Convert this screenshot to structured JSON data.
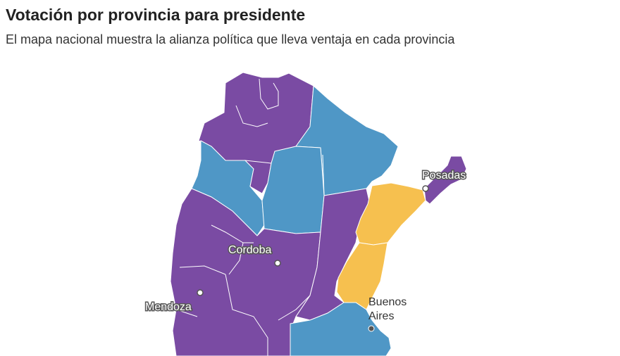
{
  "header": {
    "title": "Votación por provincia para presidente",
    "subtitle": "El mapa nacional muestra la alianza política que lleva ventaja en cada provincia"
  },
  "colors": {
    "alliance_purple": "#7a4ba3",
    "alliance_blue": "#4f97c6",
    "alliance_yellow": "#f6c04f",
    "border": "#ffffff"
  },
  "map": {
    "regions": [
      {
        "id": "north-west",
        "alliance": "purple"
      },
      {
        "id": "north-east",
        "alliance": "blue"
      },
      {
        "id": "catamarca",
        "alliance": "blue"
      },
      {
        "id": "santiago",
        "alliance": "blue"
      },
      {
        "id": "tucuman",
        "alliance": "purple"
      },
      {
        "id": "cuyo-cordoba",
        "alliance": "purple"
      },
      {
        "id": "santa-fe",
        "alliance": "purple"
      },
      {
        "id": "corrientes",
        "alliance": "yellow"
      },
      {
        "id": "entre-rios",
        "alliance": "yellow"
      },
      {
        "id": "misiones",
        "alliance": "purple"
      },
      {
        "id": "buenos-aires",
        "alliance": "blue"
      }
    ],
    "cities": [
      {
        "name": "Posadas",
        "marker": "open",
        "label_style": "halo"
      },
      {
        "name": "Cordoba",
        "marker": "open",
        "label_style": "halo"
      },
      {
        "name": "Mendoza",
        "marker": "open",
        "label_style": "halo"
      },
      {
        "name_line1": "Buenos",
        "name_line2": "Aires",
        "marker": "filled",
        "label_style": "plain"
      }
    ]
  }
}
